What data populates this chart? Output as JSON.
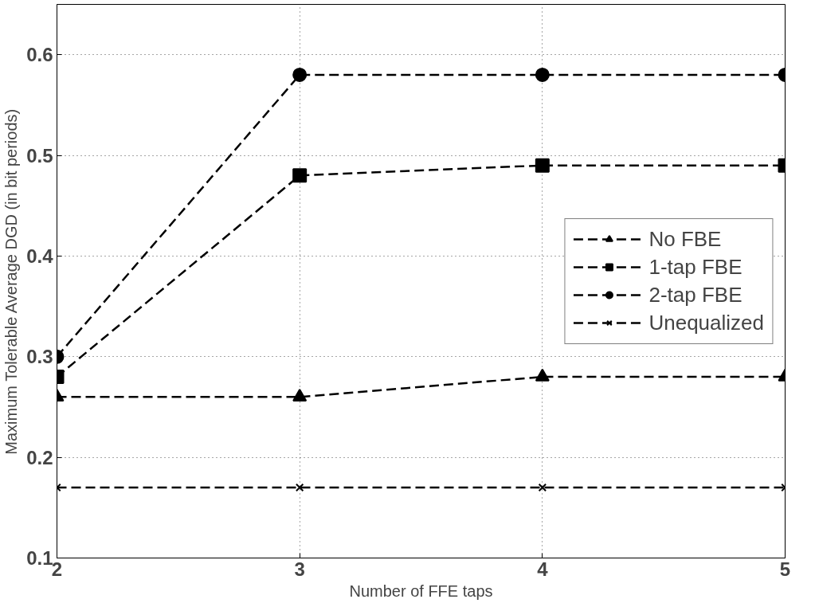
{
  "chart_data": {
    "type": "line",
    "xlabel": "Number of FFE taps",
    "ylabel": "Maximum Tolerable Average DGD (in bit periods)",
    "x": [
      2,
      3,
      4,
      5
    ],
    "series": [
      {
        "name": "No FBE",
        "color": "#000000",
        "marker": "triangle",
        "values": [
          0.26,
          0.26,
          0.28,
          0.28
        ]
      },
      {
        "name": "1-tap FBE",
        "color": "#000000",
        "marker": "square",
        "values": [
          0.28,
          0.48,
          0.49,
          0.49
        ]
      },
      {
        "name": "2-tap FBE",
        "color": "#000000",
        "marker": "circle",
        "values": [
          0.3,
          0.58,
          0.58,
          0.58
        ]
      },
      {
        "name": "Unequalized",
        "color": "#000000",
        "marker": "cross",
        "values": [
          0.17,
          0.17,
          0.17,
          0.17
        ]
      }
    ],
    "line_style": "dashed",
    "xlim": [
      2,
      5
    ],
    "ylim": [
      0.1,
      0.65
    ],
    "xticks": [
      2,
      3,
      4,
      5
    ],
    "yticks": [
      0.1,
      0.2,
      0.3,
      0.4,
      0.5,
      0.6
    ],
    "grid": true,
    "legend": "right"
  }
}
